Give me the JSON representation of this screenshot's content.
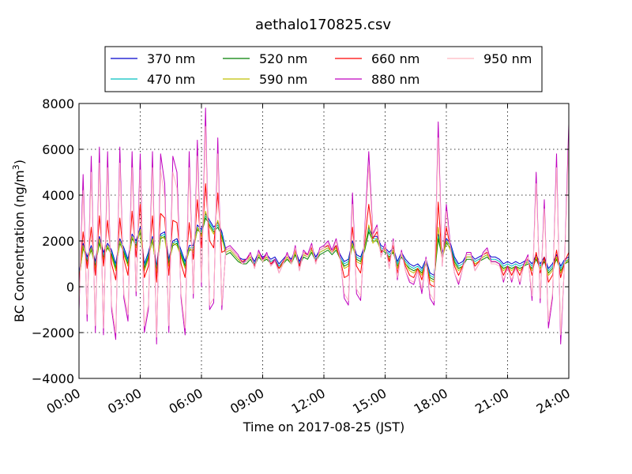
{
  "chart_data": {
    "type": "line",
    "title": "aethalo170825.csv",
    "xlabel_text": "Time on 2017-08-25 (JST)",
    "ylabel_text": "BC Concentration (ng/m",
    "ylabel_sup": "3",
    "ylabel_close": ")",
    "x_unit": "hours",
    "xlim": [
      0,
      24
    ],
    "ylim": [
      -4000,
      8000
    ],
    "grid": true,
    "legend_placement": "top",
    "x_ticks": [
      {
        "v": 0,
        "label": "00:00"
      },
      {
        "v": 3,
        "label": "03:00"
      },
      {
        "v": 6,
        "label": "06:00"
      },
      {
        "v": 9,
        "label": "09:00"
      },
      {
        "v": 12,
        "label": "12:00"
      },
      {
        "v": 15,
        "label": "15:00"
      },
      {
        "v": 18,
        "label": "18:00"
      },
      {
        "v": 21,
        "label": "21:00"
      },
      {
        "v": 24,
        "label": "24:00"
      }
    ],
    "y_ticks": [
      {
        "v": -4000,
        "label": "−4000"
      },
      {
        "v": -2000,
        "label": "−2000"
      },
      {
        "v": 0,
        "label": "0"
      },
      {
        "v": 2000,
        "label": "2000"
      },
      {
        "v": 4000,
        "label": "4000"
      },
      {
        "v": 6000,
        "label": "6000"
      },
      {
        "v": 8000,
        "label": "8000"
      }
    ],
    "x": [
      0,
      0.2,
      0.4,
      0.6,
      0.8,
      1,
      1.2,
      1.4,
      1.6,
      1.8,
      2,
      2.2,
      2.4,
      2.6,
      2.8,
      3,
      3.2,
      3.4,
      3.6,
      3.8,
      4,
      4.2,
      4.4,
      4.6,
      4.8,
      5,
      5.2,
      5.4,
      5.6,
      5.8,
      6,
      6.2,
      6.4,
      6.6,
      6.8,
      7,
      7.2,
      7.4,
      7.6,
      7.8,
      8,
      8.2,
      8.4,
      8.6,
      8.8,
      9,
      9.2,
      9.4,
      9.6,
      9.8,
      10,
      10.2,
      10.4,
      10.6,
      10.8,
      11,
      11.2,
      11.4,
      11.6,
      11.8,
      12,
      12.2,
      12.4,
      12.6,
      12.8,
      13,
      13.2,
      13.4,
      13.6,
      13.8,
      14,
      14.2,
      14.4,
      14.6,
      14.8,
      15,
      15.2,
      15.4,
      15.6,
      15.8,
      16,
      16.2,
      16.4,
      16.6,
      16.8,
      17,
      17.2,
      17.4,
      17.6,
      17.8,
      18,
      18.2,
      18.4,
      18.6,
      18.8,
      19,
      19.2,
      19.4,
      19.6,
      19.8,
      20,
      20.2,
      20.4,
      20.6,
      20.8,
      21,
      21.2,
      21.4,
      21.6,
      21.8,
      22,
      22.2,
      22.4,
      22.6,
      22.8,
      23,
      23.2,
      23.4,
      23.6,
      23.8,
      24
    ],
    "series": [
      {
        "name": "370 nm",
        "color": "#0000cc",
        "values": [
          500,
          1900,
          1300,
          1800,
          1100,
          2200,
          1500,
          1900,
          1600,
          1000,
          2100,
          1700,
          1200,
          2300,
          2000,
          2600,
          1000,
          1500,
          2200,
          900,
          2300,
          2400,
          1200,
          2000,
          2100,
          1600,
          1100,
          1800,
          1800,
          2700,
          2500,
          3200,
          2900,
          2600,
          2800,
          2400,
          1600,
          1700,
          1500,
          1300,
          1200,
          1200,
          1400,
          1100,
          1500,
          1300,
          1400,
          1200,
          1300,
          1000,
          1200,
          1400,
          1200,
          1600,
          1100,
          1500,
          1400,
          1700,
          1300,
          1600,
          1700,
          1800,
          1600,
          1800,
          1400,
          1100,
          1200,
          2000,
          1400,
          1300,
          1800,
          2600,
          2200,
          2200,
          1800,
          1700,
          1500,
          1700,
          1100,
          1500,
          1200,
          1000,
          900,
          1000,
          800,
          1200,
          600,
          500,
          2300,
          1500,
          2100,
          1900,
          1300,
          1000,
          1100,
          1400,
          1400,
          1200,
          1300,
          1400,
          1500,
          1300,
          1300,
          1200,
          1000,
          1100,
          1000,
          1100,
          1000,
          1100,
          1200,
          1000,
          1400,
          1000,
          1300,
          800,
          1000,
          1400,
          900,
          1200,
          1300
        ]
      },
      {
        "name": "470 nm",
        "color": "#00bfbf",
        "values": [
          400,
          1800,
          1200,
          1700,
          1000,
          2000,
          1400,
          1800,
          1500,
          900,
          2000,
          1600,
          1100,
          2200,
          1900,
          2500,
          900,
          1400,
          2100,
          800,
          2200,
          2300,
          1100,
          1900,
          2000,
          1500,
          1000,
          1700,
          1700,
          2600,
          2400,
          3100,
          2800,
          2500,
          2700,
          2300,
          1500,
          1600,
          1400,
          1200,
          1100,
          1100,
          1300,
          1000,
          1400,
          1200,
          1300,
          1100,
          1200,
          900,
          1100,
          1300,
          1100,
          1500,
          1000,
          1400,
          1300,
          1600,
          1200,
          1500,
          1600,
          1700,
          1500,
          1700,
          1300,
          1000,
          1100,
          1900,
          1300,
          1200,
          1700,
          2500,
          2100,
          2100,
          1700,
          1600,
          1400,
          1600,
          1000,
          1400,
          1100,
          900,
          800,
          900,
          700,
          1100,
          500,
          400,
          2200,
          1400,
          2000,
          1800,
          1200,
          900,
          1000,
          1300,
          1300,
          1100,
          1200,
          1300,
          1400,
          1200,
          1200,
          1100,
          900,
          1000,
          900,
          1000,
          900,
          1000,
          1100,
          900,
          1300,
          900,
          1200,
          700,
          900,
          1300,
          800,
          1100,
          1200
        ]
      },
      {
        "name": "520 nm",
        "color": "#007f00",
        "values": [
          300,
          1700,
          1100,
          1600,
          900,
          1900,
          1300,
          1700,
          1400,
          800,
          1900,
          1500,
          1000,
          2100,
          1800,
          2400,
          800,
          1300,
          2000,
          700,
          2100,
          2200,
          1000,
          1800,
          1900,
          1400,
          900,
          1600,
          1600,
          2500,
          2300,
          3000,
          2700,
          2400,
          2600,
          2200,
          1400,
          1500,
          1300,
          1100,
          1000,
          1000,
          1200,
          900,
          1300,
          1100,
          1200,
          1000,
          1100,
          800,
          1000,
          1200,
          1000,
          1400,
          900,
          1300,
          1200,
          1500,
          1100,
          1400,
          1500,
          1600,
          1400,
          1600,
          1200,
          900,
          1000,
          1800,
          1200,
          1100,
          1600,
          2400,
          2000,
          2000,
          1600,
          1500,
          1300,
          1500,
          900,
          1300,
          1000,
          800,
          700,
          800,
          600,
          1000,
          400,
          300,
          2100,
          1300,
          1900,
          1700,
          1100,
          800,
          900,
          1200,
          1200,
          1000,
          1100,
          1200,
          1300,
          1100,
          1100,
          1000,
          800,
          900,
          800,
          900,
          800,
          900,
          1000,
          800,
          1200,
          800,
          1100,
          600,
          800,
          1200,
          700,
          1000,
          1100
        ]
      },
      {
        "name": "590 nm",
        "color": "#bfbf00",
        "values": [
          200,
          1800,
          1000,
          1700,
          800,
          2100,
          1200,
          1800,
          1300,
          700,
          2000,
          1400,
          900,
          2200,
          1700,
          2500,
          700,
          1200,
          2100,
          600,
          2200,
          2100,
          900,
          1900,
          1800,
          1300,
          800,
          1700,
          1500,
          2600,
          2200,
          3300,
          2600,
          2300,
          2900,
          2100,
          1500,
          1600,
          1400,
          1200,
          1000,
          1100,
          1300,
          900,
          1400,
          1100,
          1300,
          1000,
          1100,
          800,
          1000,
          1300,
          1000,
          1500,
          900,
          1400,
          1300,
          1600,
          1100,
          1500,
          1600,
          1700,
          1500,
          1700,
          1200,
          800,
          900,
          1900,
          1100,
          1000,
          1700,
          2700,
          1900,
          2100,
          1500,
          1600,
          1200,
          1600,
          800,
          1400,
          1000,
          700,
          600,
          800,
          500,
          1100,
          300,
          200,
          2600,
          1200,
          2000,
          1600,
          1000,
          700,
          900,
          1300,
          1300,
          1000,
          1100,
          1300,
          1400,
          1100,
          1100,
          1000,
          700,
          900,
          700,
          900,
          700,
          900,
          1100,
          700,
          1300,
          800,
          1200,
          500,
          700,
          1300,
          600,
          1000,
          1200
        ]
      },
      {
        "name": "660 nm",
        "color": "#ff0000",
        "values": [
          100,
          2400,
          800,
          2600,
          500,
          3100,
          900,
          2900,
          1000,
          300,
          3000,
          1200,
          500,
          3300,
          1300,
          3600,
          400,
          900,
          3100,
          200,
          3200,
          3000,
          500,
          2900,
          2800,
          1000,
          400,
          2800,
          1200,
          3800,
          1700,
          4500,
          2000,
          1700,
          4100,
          1500,
          1600,
          1700,
          1500,
          1300,
          1100,
          1200,
          1400,
          900,
          1500,
          1200,
          1400,
          1000,
          1200,
          800,
          1100,
          1400,
          1100,
          1600,
          900,
          1500,
          1400,
          1700,
          1100,
          1600,
          1700,
          1800,
          1500,
          1800,
          1200,
          400,
          500,
          2600,
          900,
          600,
          2000,
          3600,
          2100,
          2400,
          1500,
          1700,
          1100,
          1800,
          600,
          1500,
          900,
          500,
          400,
          800,
          300,
          1200,
          100,
          0,
          3700,
          1100,
          2600,
          1700,
          900,
          500,
          900,
          1400,
          1400,
          900,
          1100,
          1400,
          1500,
          1100,
          1100,
          1000,
          500,
          900,
          500,
          900,
          500,
          1000,
          1200,
          500,
          1500,
          600,
          1300,
          200,
          500,
          1600,
          400,
          1100,
          1500
        ]
      },
      {
        "name": "880 nm",
        "color": "#bf00bf",
        "values": [
          -1000,
          4900,
          -1500,
          5700,
          -2000,
          6100,
          -2100,
          5900,
          -1000,
          -2300,
          6100,
          -500,
          -1500,
          5900,
          -400,
          5800,
          -2000,
          -1000,
          5900,
          -2500,
          5800,
          4500,
          -2000,
          5700,
          5000,
          -500,
          -2100,
          5900,
          -500,
          6400,
          0,
          7800,
          -1000,
          -700,
          6500,
          -1000,
          1700,
          1800,
          1600,
          1400,
          1000,
          1200,
          1500,
          800,
          1600,
          1200,
          1500,
          900,
          1200,
          600,
          1000,
          1500,
          1000,
          1800,
          700,
          1600,
          1400,
          1900,
          1000,
          1700,
          1800,
          2000,
          1600,
          2100,
          1300,
          -500,
          -800,
          4100,
          -300,
          -600,
          2500,
          5900,
          2300,
          2700,
          1300,
          1900,
          800,
          2100,
          300,
          1600,
          700,
          200,
          100,
          700,
          -300,
          1300,
          -500,
          -800,
          7200,
          900,
          3600,
          1800,
          600,
          100,
          800,
          1500,
          1500,
          700,
          1000,
          1500,
          1700,
          1100,
          1100,
          1000,
          200,
          900,
          200,
          900,
          100,
          1000,
          1400,
          -600,
          5000,
          -700,
          3800,
          -1800,
          -500,
          5800,
          -2500,
          1200,
          7100
        ]
      },
      {
        "name": "950 nm",
        "color": "#ffb6c1",
        "values": [
          -800,
          4200,
          -1200,
          5000,
          -1700,
          5400,
          -1800,
          5200,
          -800,
          -2000,
          5400,
          -300,
          -1200,
          5200,
          -200,
          5100,
          -1700,
          -800,
          5200,
          -2200,
          5100,
          3900,
          -1700,
          5000,
          4300,
          -300,
          -1800,
          5200,
          -300,
          5700,
          200,
          7000,
          -800,
          -500,
          5800,
          -800,
          1600,
          1700,
          1500,
          1300,
          1000,
          1100,
          1400,
          800,
          1500,
          1100,
          1400,
          900,
          1100,
          600,
          1000,
          1400,
          1000,
          1700,
          700,
          1500,
          1300,
          1800,
          1000,
          1600,
          1700,
          1900,
          1500,
          2000,
          1200,
          -300,
          -600,
          3600,
          -100,
          -400,
          2300,
          5300,
          2200,
          2600,
          1300,
          1800,
          800,
          2000,
          400,
          1500,
          700,
          300,
          200,
          700,
          -100,
          1200,
          -300,
          -600,
          6500,
          900,
          3300,
          1700,
          600,
          200,
          800,
          1400,
          1400,
          700,
          1000,
          1400,
          1600,
          1000,
          1000,
          900,
          300,
          800,
          300,
          800,
          200,
          900,
          1300,
          -400,
          4500,
          -500,
          3400,
          -1500,
          -300,
          5200,
          -2100,
          1100,
          6400
        ]
      }
    ]
  }
}
